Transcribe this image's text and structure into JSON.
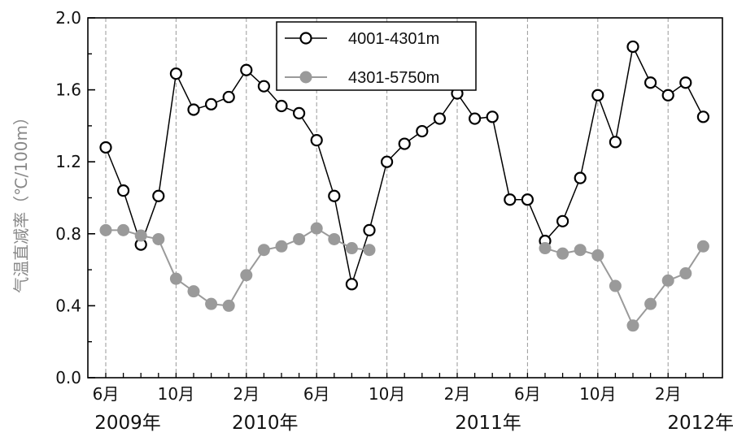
{
  "chart_data": {
    "type": "line",
    "title": "",
    "ylabel": "气温直减率（℃/100m）",
    "xlabel": "",
    "ylim": [
      0,
      2.0
    ],
    "yticks": [
      "0.0",
      "0.4",
      "0.8",
      "1.2",
      "1.6",
      "2.0"
    ],
    "x_tick_labels": [
      "6月",
      "10月",
      "2月",
      "6月",
      "10月",
      "2月",
      "6月",
      "10月",
      "2月"
    ],
    "year_labels": [
      "2009年",
      "2010年",
      "2011年",
      "2012年"
    ],
    "grid": "vertical dashed lines at labeled months",
    "legend_position": "top-center",
    "x": [
      "2009-06",
      "2009-07",
      "2009-08",
      "2009-09",
      "2009-10",
      "2009-11",
      "2009-12",
      "2010-01",
      "2010-02",
      "2010-03",
      "2010-04",
      "2010-05",
      "2010-06",
      "2010-07",
      "2010-08",
      "2010-09",
      "2010-10",
      "2010-11",
      "2010-12",
      "2011-01",
      "2011-02",
      "2011-03",
      "2011-04",
      "2011-05",
      "2011-06",
      "2011-07",
      "2011-08",
      "2011-09",
      "2011-10",
      "2011-11",
      "2011-12",
      "2012-01",
      "2012-02",
      "2012-03",
      "2012-04"
    ],
    "series": [
      {
        "name": "4001-4301m",
        "color": "#000000",
        "marker": "open-circle",
        "values": [
          1.28,
          1.04,
          0.74,
          1.01,
          1.69,
          1.49,
          1.52,
          1.56,
          1.71,
          1.62,
          1.51,
          1.47,
          1.32,
          1.01,
          0.52,
          0.82,
          1.2,
          1.3,
          1.37,
          1.44,
          1.58,
          1.44,
          1.45,
          0.99,
          0.99,
          0.76,
          0.87,
          1.11,
          1.57,
          1.31,
          1.84,
          1.64,
          1.57,
          1.64,
          1.45
        ]
      },
      {
        "name": "4301-5750m",
        "color": "#999999",
        "marker": "filled-circle",
        "values": [
          0.82,
          0.82,
          0.79,
          0.77,
          0.55,
          0.48,
          0.41,
          0.4,
          0.57,
          0.71,
          0.73,
          0.77,
          0.83,
          0.77,
          0.72,
          0.71,
          null,
          null,
          null,
          null,
          null,
          null,
          null,
          null,
          null,
          0.72,
          0.69,
          0.71,
          0.68,
          0.51,
          0.29,
          0.41,
          0.54,
          0.58,
          0.73
        ]
      }
    ]
  }
}
